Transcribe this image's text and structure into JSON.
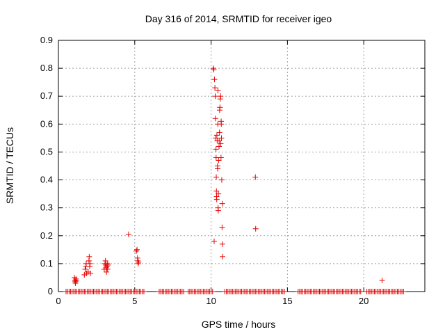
{
  "chart_data": {
    "type": "scatter",
    "title": "Day 316 of 2014, SRMTID for receiver igeo",
    "xlabel": "GPS time / hours",
    "ylabel": "SRMTID / TECUs",
    "xlim": [
      0,
      24
    ],
    "ylim": [
      0,
      0.9
    ],
    "xticks": [
      0,
      5,
      10,
      15,
      20
    ],
    "xtick_labels": [
      "0",
      "5",
      "10",
      "15",
      "20"
    ],
    "yticks": [
      0,
      0.1,
      0.2,
      0.3,
      0.4,
      0.5,
      0.6,
      0.7,
      0.8,
      0.9
    ],
    "ytick_labels": [
      "0",
      "0.1",
      "0.2",
      "0.3",
      "0.4",
      "0.5",
      "0.6",
      "0.7",
      "0.8",
      "0.9"
    ],
    "grid": true,
    "marker": "+",
    "color": "#e60000",
    "series": [
      {
        "name": "SRMTID",
        "points": [
          [
            1.05,
            0.05
          ],
          [
            1.08,
            0.04
          ],
          [
            1.1,
            0.035
          ],
          [
            1.12,
            0.03
          ],
          [
            1.15,
            0.045
          ],
          [
            1.18,
            0.038
          ],
          [
            1.7,
            0.06
          ],
          [
            1.75,
            0.08
          ],
          [
            1.8,
            0.09
          ],
          [
            1.82,
            0.1
          ],
          [
            1.85,
            0.065
          ],
          [
            1.95,
            0.07
          ],
          [
            2.0,
            0.11
          ],
          [
            2.02,
            0.125
          ],
          [
            2.05,
            0.09
          ],
          [
            2.07,
            0.1
          ],
          [
            2.1,
            0.065
          ],
          [
            3.0,
            0.08
          ],
          [
            3.05,
            0.1
          ],
          [
            3.08,
            0.11
          ],
          [
            3.1,
            0.095
          ],
          [
            3.12,
            0.085
          ],
          [
            3.15,
            0.07
          ],
          [
            3.18,
            0.09
          ],
          [
            3.2,
            0.1
          ],
          [
            3.22,
            0.08
          ],
          [
            3.25,
            0.095
          ],
          [
            4.6,
            0.205
          ],
          [
            5.1,
            0.145
          ],
          [
            5.15,
            0.15
          ],
          [
            5.18,
            0.12
          ],
          [
            5.2,
            0.11
          ],
          [
            5.22,
            0.1
          ],
          [
            5.25,
            0.105
          ],
          [
            10.15,
            0.8
          ],
          [
            10.18,
            0.795
          ],
          [
            10.2,
            0.18
          ],
          [
            10.22,
            0.76
          ],
          [
            10.25,
            0.73
          ],
          [
            10.27,
            0.7
          ],
          [
            10.28,
            0.62
          ],
          [
            10.3,
            0.55
          ],
          [
            10.32,
            0.51
          ],
          [
            10.33,
            0.48
          ],
          [
            10.34,
            0.41
          ],
          [
            10.35,
            0.36
          ],
          [
            10.36,
            0.34
          ],
          [
            10.37,
            0.33
          ],
          [
            10.38,
            0.56
          ],
          [
            10.4,
            0.54
          ],
          [
            10.42,
            0.45
          ],
          [
            10.43,
            0.44
          ],
          [
            10.44,
            0.6
          ],
          [
            10.45,
            0.72
          ],
          [
            10.46,
            0.3
          ],
          [
            10.47,
            0.29
          ],
          [
            10.48,
            0.35
          ],
          [
            10.5,
            0.47
          ],
          [
            10.52,
            0.52
          ],
          [
            10.53,
            0.54
          ],
          [
            10.55,
            0.57
          ],
          [
            10.56,
            0.65
          ],
          [
            10.58,
            0.66
          ],
          [
            10.6,
            0.69
          ],
          [
            10.62,
            0.7
          ],
          [
            10.63,
            0.53
          ],
          [
            10.65,
            0.48
          ],
          [
            10.66,
            0.61
          ],
          [
            10.67,
            0.6
          ],
          [
            10.68,
            0.55
          ],
          [
            10.7,
            0.4
          ],
          [
            10.72,
            0.23
          ],
          [
            10.73,
            0.315
          ],
          [
            10.74,
            0.17
          ],
          [
            10.75,
            0.125
          ],
          [
            12.9,
            0.41
          ],
          [
            12.92,
            0.225
          ],
          [
            21.2,
            0.04
          ]
        ]
      }
    ],
    "zero_ranges": [
      [
        0.5,
        5.65
      ],
      [
        6.6,
        8.2
      ],
      [
        8.5,
        10.1
      ],
      [
        10.9,
        14.8
      ],
      [
        15.7,
        19.8
      ],
      [
        20.2,
        22.6
      ]
    ]
  }
}
